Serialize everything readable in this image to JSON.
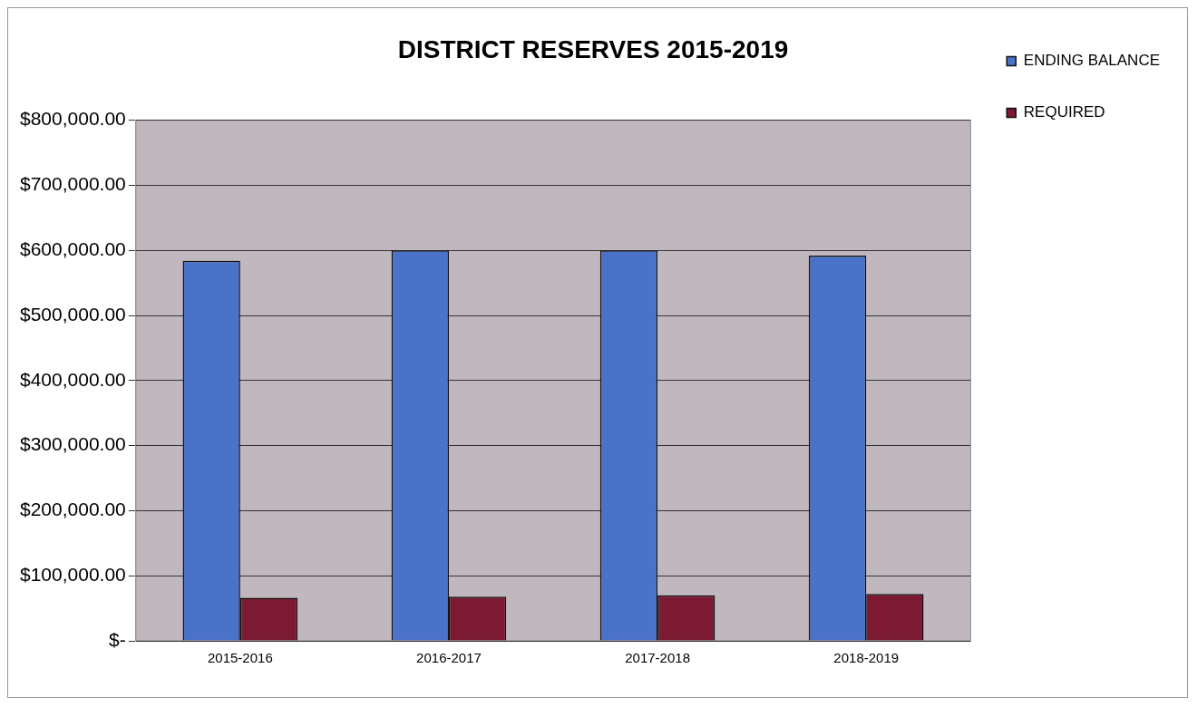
{
  "chart_data": {
    "type": "bar",
    "title": "DISTRICT RESERVES 2015-2019",
    "categories": [
      "2015-2016",
      "2016-2017",
      "2017-2018",
      "2018-2019"
    ],
    "series": [
      {
        "name": "ENDING BALANCE",
        "color": "#4a72c8",
        "values": [
          584000,
          600000,
          600000,
          592000
        ]
      },
      {
        "name": "REQUIRED",
        "color": "#7b1a32",
        "values": [
          66000,
          68000,
          70000,
          72000
        ]
      }
    ],
    "ylim": [
      0,
      800000
    ],
    "yticks": [
      {
        "value": 0,
        "label": "$-"
      },
      {
        "value": 100000,
        "label": "$100,000.00"
      },
      {
        "value": 200000,
        "label": "$200,000.00"
      },
      {
        "value": 300000,
        "label": "$300,000.00"
      },
      {
        "value": 400000,
        "label": "$400,000.00"
      },
      {
        "value": 500000,
        "label": "$500,000.00"
      },
      {
        "value": 600000,
        "label": "$600,000.00"
      },
      {
        "value": 700000,
        "label": "$700,000.00"
      },
      {
        "value": 800000,
        "label": "$800,000.00"
      }
    ],
    "grid": "y",
    "legend": "top right"
  }
}
